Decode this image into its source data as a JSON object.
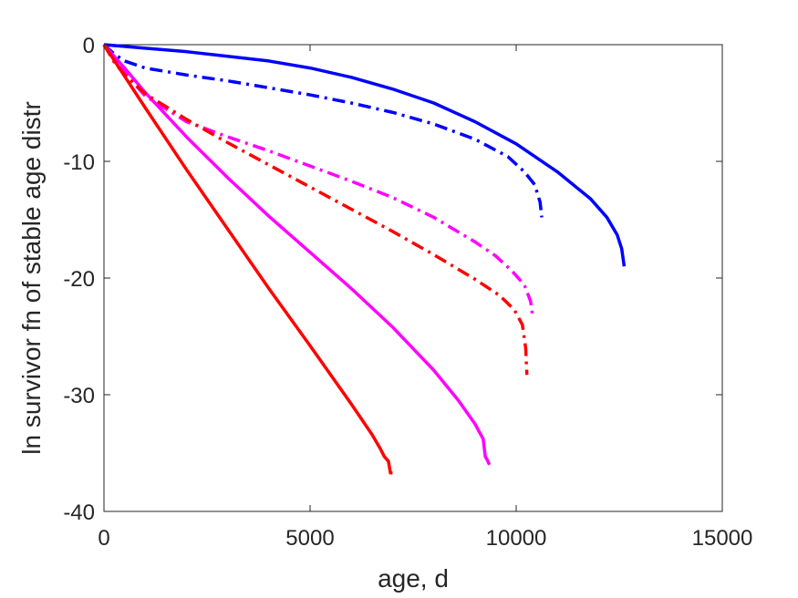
{
  "chart_data": {
    "type": "line",
    "title": "",
    "xlabel": "age, d",
    "ylabel": "ln survivor fn of stable age distr",
    "xlim": [
      0,
      15000
    ],
    "ylim": [
      -40,
      0
    ],
    "xticks": [
      0,
      5000,
      10000,
      15000
    ],
    "yticks": [
      0,
      -10,
      -20,
      -30,
      -40
    ],
    "xtick_labels": [
      "0",
      "5000",
      "10000",
      "15000"
    ],
    "ytick_labels": [
      "0",
      "-10",
      "-20",
      "-30",
      "-40"
    ],
    "grid": false,
    "series": [
      {
        "color": "#0000ff",
        "style": "solid",
        "x": [
          0,
          1000,
          2000,
          3000,
          4000,
          5000,
          6000,
          7000,
          8000,
          9000,
          10000,
          11000,
          11800,
          12200,
          12450,
          12560,
          12620
        ],
        "y": [
          0,
          -0.3,
          -0.6,
          -1.0,
          -1.4,
          -2.0,
          -2.8,
          -3.8,
          -5.0,
          -6.6,
          -8.5,
          -10.9,
          -13.2,
          -14.8,
          -16.3,
          -17.5,
          -19.0
        ]
      },
      {
        "color": "#0000ff",
        "style": "dashdot",
        "x": [
          0,
          250,
          500,
          1000,
          2000,
          3000,
          4000,
          5000,
          6000,
          7000,
          8000,
          9000,
          9800,
          10200,
          10450,
          10580,
          10620
        ],
        "y": [
          0,
          -0.8,
          -1.4,
          -2.0,
          -2.6,
          -3.1,
          -3.7,
          -4.3,
          -5.0,
          -5.8,
          -6.8,
          -8.1,
          -9.6,
          -10.9,
          -12.0,
          -13.5,
          -14.8
        ]
      },
      {
        "color": "#ff00ff",
        "style": "solid",
        "x": [
          0,
          500,
          1000,
          2000,
          3000,
          4000,
          5000,
          6000,
          7000,
          8000,
          8600,
          9000,
          9200,
          9250,
          9300,
          9350
        ],
        "y": [
          0,
          -2.0,
          -4.1,
          -7.9,
          -11.4,
          -14.7,
          -17.8,
          -20.9,
          -24.2,
          -27.9,
          -30.5,
          -32.5,
          -33.8,
          -35.3,
          -35.6,
          -36.0
        ]
      },
      {
        "color": "#ff00ff",
        "style": "dashdot",
        "x": [
          0,
          250,
          500,
          1000,
          2000,
          3000,
          4000,
          5000,
          6000,
          7000,
          8000,
          9000,
          9500,
          9900,
          10200,
          10350,
          10400
        ],
        "y": [
          0,
          -1.2,
          -2.4,
          -4.4,
          -6.6,
          -7.9,
          -9.1,
          -10.4,
          -11.7,
          -13.1,
          -14.8,
          -16.9,
          -18.1,
          -19.4,
          -20.6,
          -22.0,
          -23.3
        ]
      },
      {
        "color": "#ff0000",
        "style": "solid",
        "x": [
          0,
          500,
          1000,
          2000,
          3000,
          4000,
          5000,
          6000,
          6500,
          6700,
          6800,
          6900,
          6950,
          7000
        ],
        "y": [
          0,
          -2.7,
          -5.4,
          -10.7,
          -15.8,
          -20.9,
          -25.8,
          -30.8,
          -33.4,
          -34.6,
          -35.3,
          -35.7,
          -36.7,
          -36.7
        ]
      },
      {
        "color": "#ff0000",
        "style": "dashdot",
        "x": [
          0,
          250,
          500,
          1000,
          2000,
          3000,
          4000,
          5000,
          6000,
          7000,
          8000,
          9000,
          9600,
          9950,
          10150,
          10230,
          10260
        ],
        "y": [
          0,
          -1.5,
          -2.6,
          -4.2,
          -6.4,
          -8.4,
          -10.3,
          -12.2,
          -14.1,
          -16.0,
          -18.0,
          -20.1,
          -21.5,
          -22.7,
          -24.0,
          -26.0,
          -28.3
        ]
      }
    ]
  }
}
